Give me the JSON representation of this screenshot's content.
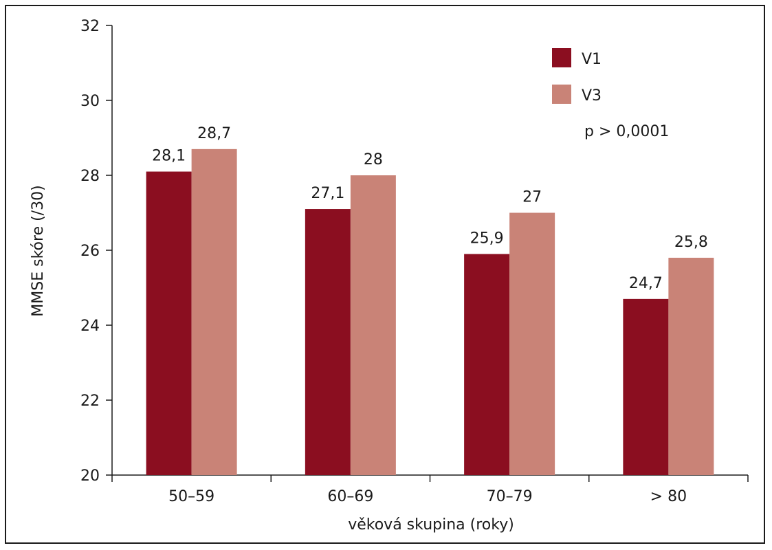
{
  "chart_data": {
    "type": "bar",
    "categories": [
      "50–59",
      "60–69",
      "70–79",
      "> 80"
    ],
    "series": [
      {
        "name": "V1",
        "values": [
          28.1,
          27.1,
          25.9,
          24.7
        ],
        "labels": [
          "28,1",
          "27,1",
          "25,9",
          "24,7"
        ],
        "color": "#8b0e20"
      },
      {
        "name": "V3",
        "values": [
          28.7,
          28.0,
          27.0,
          25.8
        ],
        "labels": [
          "28,7",
          "28",
          "27",
          "25,8"
        ],
        "color": "#c98377"
      }
    ],
    "xlabel": "věková skupina (roky)",
    "ylabel": "MMSE skóre (/30)",
    "ylim": [
      20,
      32
    ],
    "yticks": [
      20,
      22,
      24,
      26,
      28,
      30,
      32
    ],
    "annotation": "p > 0,0001",
    "legend_position": "top-right",
    "grid": false
  }
}
